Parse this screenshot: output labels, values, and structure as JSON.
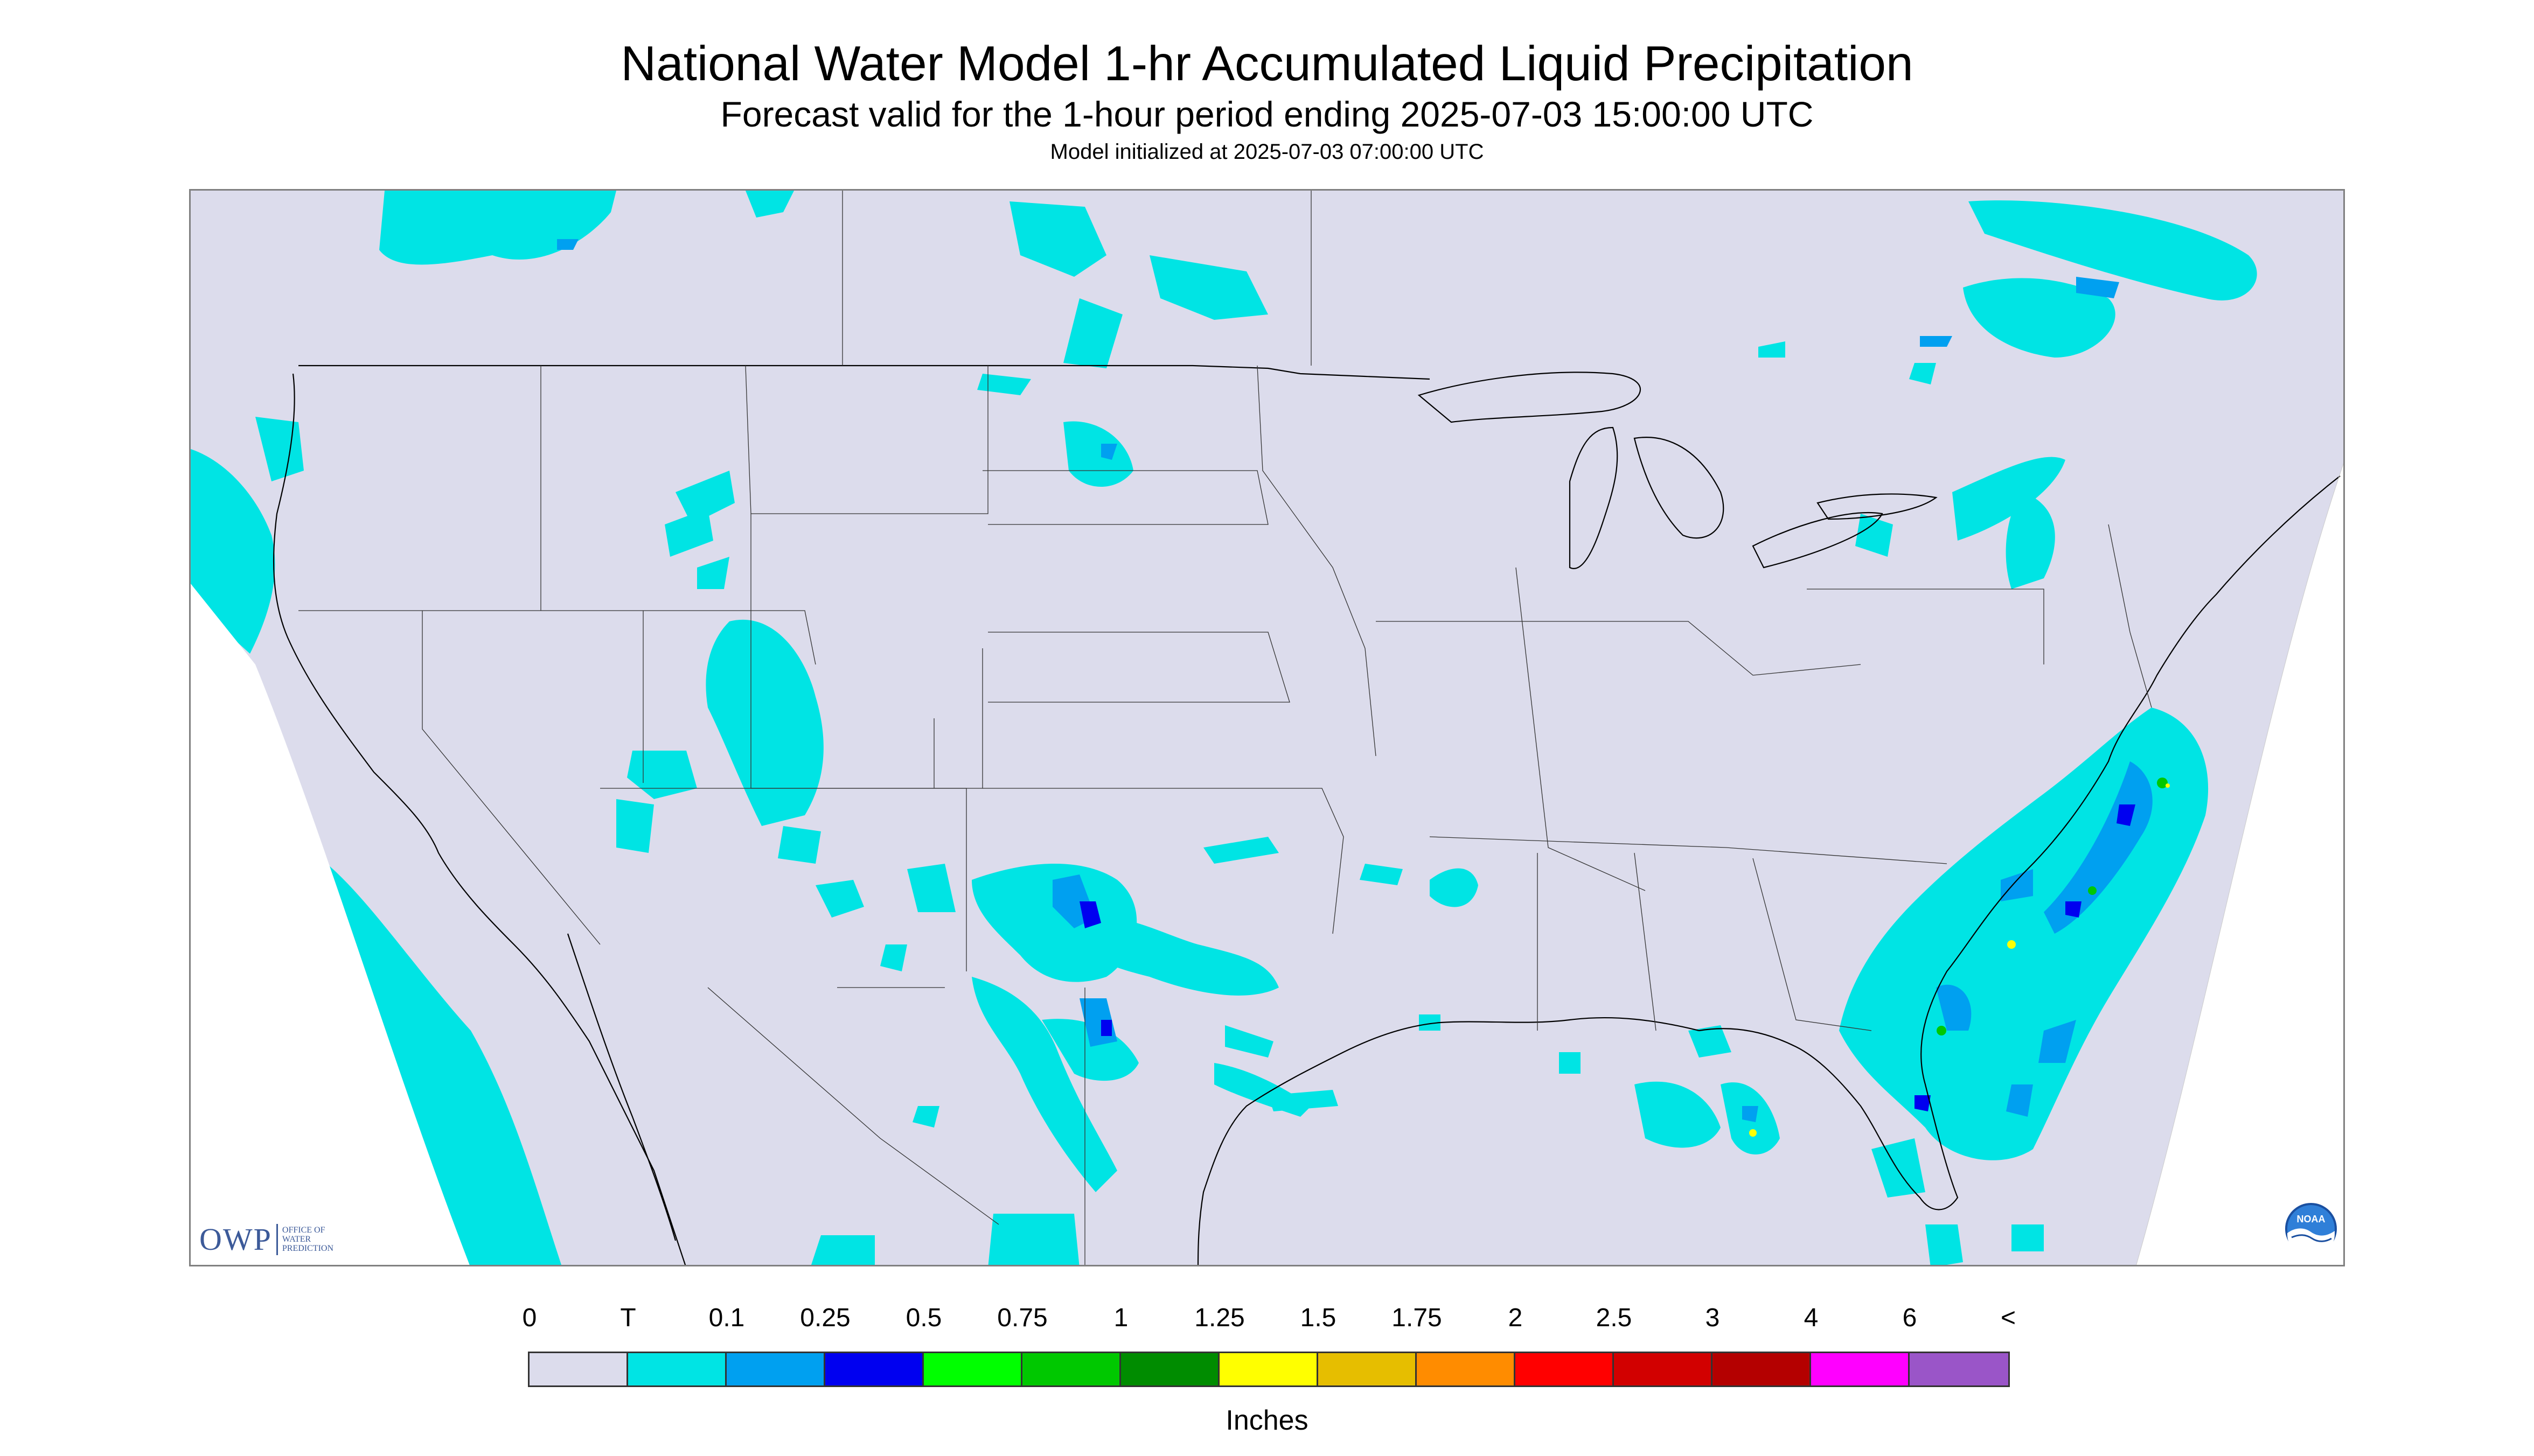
{
  "title": "National Water Model 1-hr Accumulated Liquid Precipitation",
  "subtitle": "Forecast valid for the 1-hour period ending 2025-07-03 15:00:00 UTC",
  "init_line": "Model initialized at 2025-07-03 07:00:00 UTC",
  "logos": {
    "owp_mark": "OWP",
    "owp_text": "OFFICE OF\nWATER\nPREDICTION",
    "noaa_text": "NOAA"
  },
  "legend": {
    "units": "Inches",
    "labels": [
      "0",
      "T",
      "0.1",
      "0.25",
      "0.5",
      "0.75",
      "1",
      "1.25",
      "1.5",
      "1.75",
      "2",
      "2.5",
      "3",
      "4",
      "6",
      "<"
    ],
    "colors": [
      "#dcdcec",
      "#00e4e4",
      "#00a0f0",
      "#0000f0",
      "#00ff00",
      "#00c800",
      "#008c00",
      "#ffff00",
      "#e6be00",
      "#ff8c00",
      "#ff0000",
      "#d20000",
      "#b40000",
      "#ff00ff",
      "#9a55c8"
    ]
  },
  "map": {
    "domain_fill": "#dcdcec",
    "outside_fill": "#ffffff",
    "precip_colors": {
      "trace": "#00e4e4",
      "light": "#00a0f0",
      "moderate": "#0000f0",
      "heavy": "#00c800",
      "extreme": "#ffff00"
    }
  }
}
